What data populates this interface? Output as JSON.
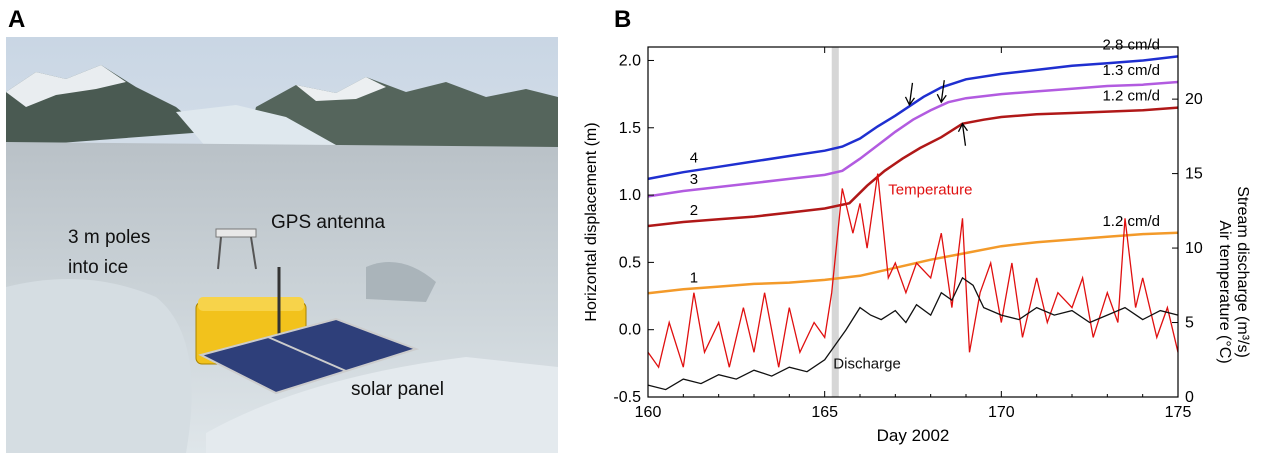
{
  "panels": {
    "a": "A",
    "b": "B"
  },
  "photo": {
    "labels": {
      "gps": "GPS antenna",
      "poles_line1": "3 m poles",
      "poles_line2": "into ice",
      "solar": "solar panel"
    }
  },
  "chart_data": {
    "type": "line",
    "xlabel": "Day 2002",
    "ylabel_left": "Horizontal displacement (m)",
    "ylabel_right_1": "Stream discharge (m³/s)",
    "ylabel_right_2": "Air temperature (°C)",
    "xlim": [
      160,
      175
    ],
    "ylim_left": [
      -0.5,
      2.1
    ],
    "ylim_right": [
      0,
      23.5
    ],
    "xticks": [
      "160",
      "165",
      "170",
      "175"
    ],
    "yticks_left": [
      "-0.5",
      "0.0",
      "0.5",
      "1.0",
      "1.5",
      "2.0"
    ],
    "yticks_right": [
      "0",
      "5",
      "10",
      "15",
      "20"
    ],
    "shaded_interval": [
      165.2,
      165.4
    ],
    "colors": {
      "s4": "#1f2fd0",
      "s3": "#b25be0",
      "s2": "#b01818",
      "s1": "#f39a2a",
      "temperature": "#e01010",
      "discharge": "#111111",
      "shade": "#d6d6d6"
    },
    "series": [
      {
        "name": "4",
        "rate": "2.8 cm/d",
        "color": "#1f2fd0",
        "x": [
          160,
          161,
          162,
          163,
          164,
          165,
          165.5,
          166,
          166.5,
          167,
          167.4,
          167.8,
          168.3,
          169,
          170,
          171,
          172,
          173,
          174,
          175
        ],
        "y": [
          1.12,
          1.17,
          1.21,
          1.25,
          1.29,
          1.33,
          1.36,
          1.42,
          1.51,
          1.59,
          1.66,
          1.73,
          1.8,
          1.86,
          1.9,
          1.93,
          1.96,
          1.98,
          2.0,
          2.03
        ]
      },
      {
        "name": "3",
        "rate": "1.3 cm/d",
        "color": "#b25be0",
        "x": [
          160,
          161,
          162,
          163,
          164,
          165,
          165.5,
          166,
          166.5,
          167,
          167.5,
          168,
          168.5,
          169,
          170,
          171,
          172,
          173,
          174,
          175
        ],
        "y": [
          0.99,
          1.03,
          1.06,
          1.09,
          1.12,
          1.15,
          1.18,
          1.27,
          1.37,
          1.47,
          1.56,
          1.63,
          1.69,
          1.72,
          1.75,
          1.77,
          1.79,
          1.81,
          1.82,
          1.84
        ]
      },
      {
        "name": "2",
        "rate": "1.2 cm/d",
        "color": "#b01818",
        "x": [
          160,
          161,
          162,
          163,
          164,
          165,
          165.7,
          166.2,
          166.7,
          167.2,
          167.7,
          168.3,
          168.9,
          169.5,
          170,
          171,
          172,
          173,
          174,
          175
        ],
        "y": [
          0.77,
          0.8,
          0.82,
          0.84,
          0.87,
          0.9,
          0.94,
          1.07,
          1.18,
          1.27,
          1.35,
          1.43,
          1.53,
          1.56,
          1.58,
          1.6,
          1.61,
          1.62,
          1.63,
          1.65
        ]
      },
      {
        "name": "1",
        "rate": "1.2 cm/d",
        "color": "#f39a2a",
        "x": [
          160,
          161,
          162,
          163,
          164,
          165,
          166,
          167,
          168,
          169,
          170,
          171,
          172,
          173,
          174,
          175
        ],
        "y": [
          0.27,
          0.3,
          0.32,
          0.34,
          0.35,
          0.37,
          0.4,
          0.46,
          0.52,
          0.57,
          0.62,
          0.65,
          0.67,
          0.69,
          0.71,
          0.72
        ]
      },
      {
        "name": "Temperature",
        "axis": "right",
        "color": "#e01010",
        "x": [
          160,
          160.3,
          160.6,
          161,
          161.3,
          161.6,
          162,
          162.3,
          162.7,
          163,
          163.3,
          163.7,
          164,
          164.3,
          164.7,
          165,
          165.2,
          165.5,
          165.8,
          166,
          166.2,
          166.5,
          166.8,
          167,
          167.3,
          167.6,
          168,
          168.3,
          168.6,
          168.9,
          169.1,
          169.4,
          169.7,
          170,
          170.3,
          170.6,
          171,
          171.3,
          171.6,
          172,
          172.3,
          172.6,
          173,
          173.3,
          173.5,
          173.8,
          174,
          174.4,
          174.7,
          175
        ],
        "y": [
          3,
          2,
          5,
          2,
          7,
          3,
          5,
          2,
          6,
          3,
          7,
          2,
          6,
          3,
          5,
          4,
          7,
          14,
          11,
          13,
          10,
          15,
          8,
          9,
          7,
          9,
          8,
          11,
          6,
          12,
          3,
          7,
          9,
          5,
          9,
          4,
          8,
          5,
          7,
          6,
          8,
          4,
          7,
          5,
          12,
          6,
          8,
          4,
          6,
          3
        ]
      },
      {
        "name": "Discharge",
        "axis": "right",
        "color": "#111111",
        "x": [
          160,
          160.5,
          161,
          161.5,
          162,
          162.5,
          163,
          163.5,
          164,
          164.5,
          165,
          165.3,
          165.6,
          166,
          166.3,
          166.6,
          167,
          167.3,
          167.6,
          168,
          168.3,
          168.6,
          168.9,
          169.2,
          169.5,
          170,
          170.5,
          171,
          171.5,
          172,
          172.5,
          173,
          173.5,
          174,
          174.5,
          175
        ],
        "y": [
          0.8,
          0.5,
          1.2,
          0.9,
          1.5,
          1.2,
          1.8,
          1.4,
          2.0,
          1.7,
          2.5,
          3.5,
          4.5,
          6.0,
          5.5,
          5.2,
          5.8,
          5.0,
          6.2,
          5.5,
          7.0,
          6.5,
          8.0,
          7.5,
          6.0,
          5.5,
          5.2,
          6.0,
          5.5,
          5.8,
          5.0,
          5.5,
          6.0,
          5.2,
          5.8,
          5.5
        ]
      }
    ],
    "annotations": {
      "temperature_label": "Temperature",
      "discharge_label": "Discharge"
    }
  }
}
